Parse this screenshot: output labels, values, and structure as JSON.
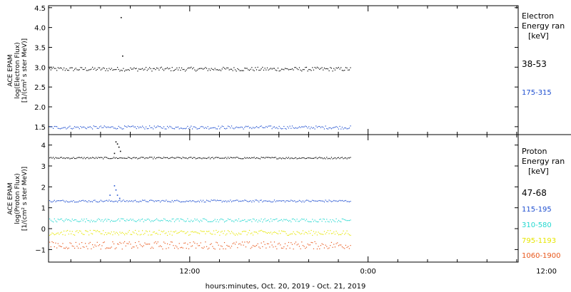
{
  "x_axis_label": "hours:minutes, Oct. 20, 2019 - Oct. 21, 2019",
  "x_tick_labels": [
    "12:00",
    "0:00",
    "12:00"
  ],
  "chart_data": [
    {
      "type": "scatter",
      "panel": "electron",
      "ylabel_lines": [
        "ACE EPAM",
        "log(Electron Flux)",
        "[1/(cm² s ster MeV)]"
      ],
      "legend_title_lines": [
        "Electron",
        "Energy ran",
        "[keV]"
      ],
      "ylim": [
        1.3,
        4.55
      ],
      "yticks": [
        1.5,
        2.0,
        2.5,
        3.0,
        3.5,
        4.0,
        4.5
      ],
      "ytick_labels": [
        "1.5",
        "2.0",
        "2.5",
        "3.0",
        "3.5",
        "4.0",
        "4.5"
      ],
      "x_range_hours": [
        2.5,
        34.1
      ],
      "data_end_hour": 22.8,
      "series": [
        {
          "name": "38-53",
          "color": "#000000",
          "baseline": 2.95,
          "noise": 0.05,
          "spikes": [
            {
              "x": 7.35,
              "y": 4.25
            },
            {
              "x": 7.45,
              "y": 3.28
            }
          ]
        },
        {
          "name": "175-315",
          "color": "#1f4fd0",
          "baseline": 1.48,
          "noise": 0.04,
          "spikes": []
        }
      ]
    },
    {
      "type": "scatter",
      "panel": "proton",
      "ylabel_lines": [
        "ACE EPAM",
        "log(Proton Flux)",
        "[1/(cm² s ster MeV)]"
      ],
      "legend_title_lines": [
        "Proton",
        "Energy ran",
        "[keV]"
      ],
      "ylim": [
        -1.6,
        4.5
      ],
      "yticks": [
        -1,
        0,
        1,
        2,
        3,
        4
      ],
      "ytick_labels": [
        "−1",
        "0",
        "1",
        "2",
        "3",
        "4"
      ],
      "x_range_hours": [
        2.5,
        34.1
      ],
      "data_end_hour": 22.8,
      "series": [
        {
          "name": "47-68",
          "color": "#000000",
          "baseline": 3.38,
          "noise": 0.04,
          "spikes": [
            {
              "x": 6.9,
              "y": 3.6
            },
            {
              "x": 7.0,
              "y": 4.15
            },
            {
              "x": 7.1,
              "y": 4.05
            },
            {
              "x": 7.2,
              "y": 3.9
            },
            {
              "x": 7.3,
              "y": 3.7
            }
          ]
        },
        {
          "name": "115-195",
          "color": "#1f4fd0",
          "baseline": 1.32,
          "noise": 0.05,
          "spikes": [
            {
              "x": 6.6,
              "y": 1.6
            },
            {
              "x": 6.9,
              "y": 2.05
            },
            {
              "x": 7.0,
              "y": 1.85
            },
            {
              "x": 7.1,
              "y": 1.6
            },
            {
              "x": 7.25,
              "y": 1.45
            }
          ]
        },
        {
          "name": "310-580",
          "color": "#22d8d0",
          "baseline": 0.4,
          "noise": 0.08,
          "spikes": []
        },
        {
          "name": "795-1193",
          "color": "#e6e600",
          "baseline": -0.2,
          "noise": 0.12,
          "spikes": []
        },
        {
          "name": "1060-1900",
          "color": "#e8581c",
          "baseline": -0.8,
          "noise": 0.18,
          "spikes": []
        }
      ]
    }
  ]
}
